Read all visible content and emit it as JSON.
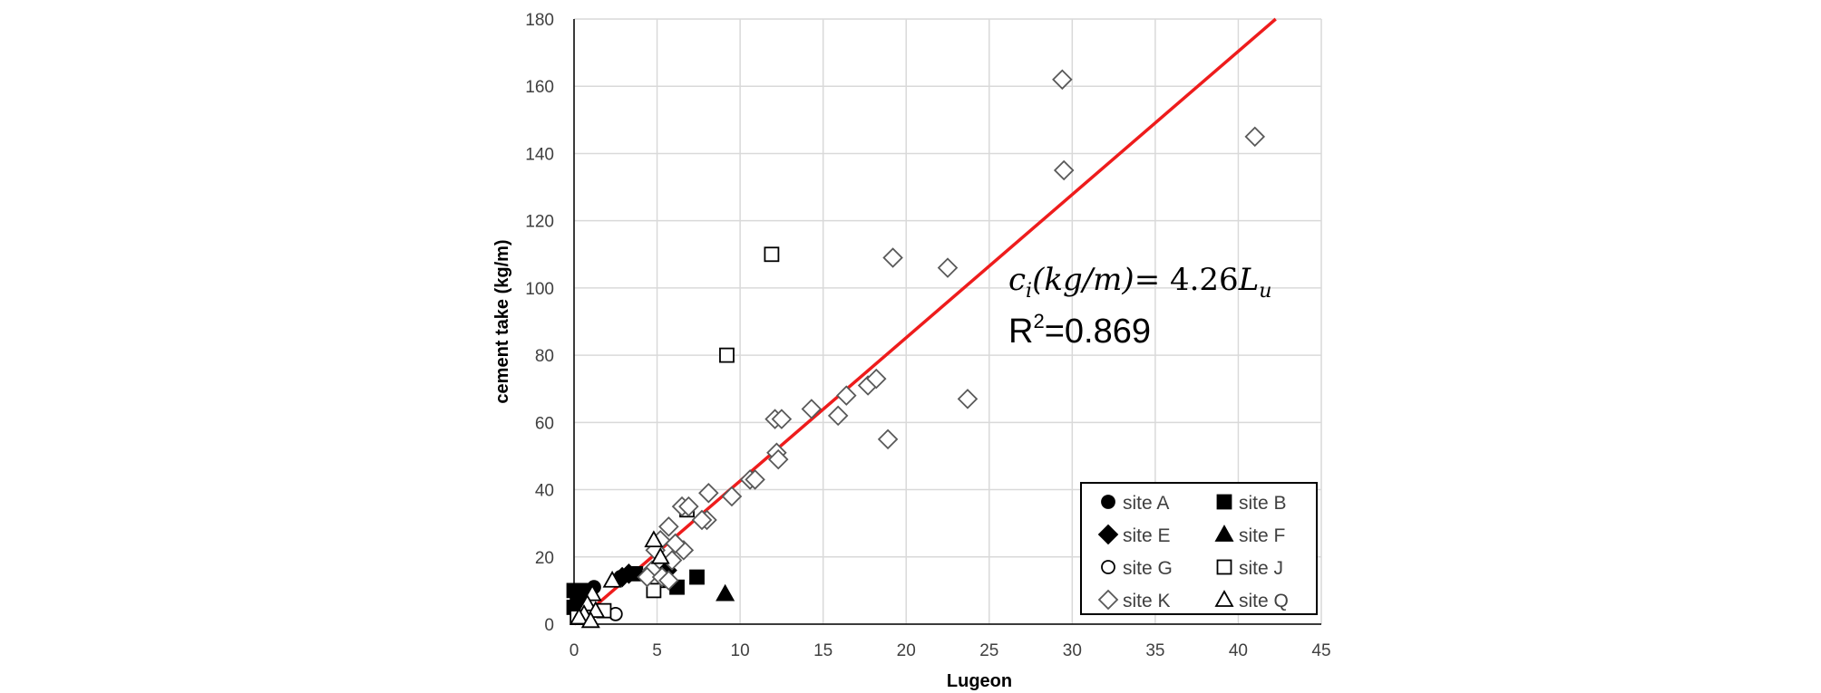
{
  "chart_data": {
    "type": "scatter",
    "xlabel": "Lugeon",
    "ylabel": "cement take (kg/m)",
    "xlim": [
      0,
      45
    ],
    "ylim": [
      0,
      180
    ],
    "xticks": [
      0,
      5,
      10,
      15,
      20,
      25,
      30,
      35,
      40,
      45
    ],
    "yticks": [
      0,
      20,
      40,
      60,
      80,
      100,
      120,
      140,
      160,
      180
    ],
    "grid": true,
    "legend_position": "bottom-right",
    "annotations": {
      "equation": {
        "ci": "c",
        "ci_sub": "i",
        "units": "(kg/m)",
        "eq": "= 4.26",
        "lu": "L",
        "lu_sub": "u"
      },
      "r2": {
        "r": "R",
        "sup": "2",
        "value": "=0.869"
      }
    },
    "trendline": {
      "slope": 4.26,
      "intercept": 0,
      "color": "#ee1c1c",
      "label": "c_i(kg/m)=4.26L_u"
    },
    "series": [
      {
        "name": "site A",
        "marker": "circle",
        "filled": true,
        "points": [
          [
            1.2,
            11
          ],
          [
            2.8,
            14
          ],
          [
            0.4,
            8
          ]
        ]
      },
      {
        "name": "site B",
        "marker": "square",
        "filled": true,
        "points": [
          [
            0,
            10
          ],
          [
            0.2,
            9
          ],
          [
            3.7,
            15
          ],
          [
            5.5,
            13
          ],
          [
            6.2,
            11
          ],
          [
            7.4,
            14
          ],
          [
            0,
            5
          ],
          [
            0.4,
            10
          ]
        ]
      },
      {
        "name": "site E",
        "marker": "diamond",
        "filled": true,
        "points": [
          [
            2.9,
            14
          ],
          [
            3.3,
            15
          ],
          [
            5.6,
            16
          ]
        ]
      },
      {
        "name": "site F",
        "marker": "triangle",
        "filled": true,
        "points": [
          [
            9.1,
            9
          ]
        ]
      },
      {
        "name": "site G",
        "marker": "circle",
        "filled": false,
        "points": [
          [
            2.5,
            3
          ],
          [
            1.5,
            4
          ],
          [
            0.8,
            2
          ]
        ]
      },
      {
        "name": "site J",
        "marker": "square",
        "filled": false,
        "points": [
          [
            11.9,
            110
          ],
          [
            9.2,
            80
          ],
          [
            4.8,
            10
          ],
          [
            6.8,
            34
          ],
          [
            1.8,
            4
          ],
          [
            0.7,
            3
          ],
          [
            0.2,
            2
          ]
        ]
      },
      {
        "name": "site K",
        "marker": "diamond",
        "filled": false,
        "points": [
          [
            29.4,
            162
          ],
          [
            41,
            145
          ],
          [
            29.5,
            135
          ],
          [
            19.2,
            109
          ],
          [
            22.5,
            106
          ],
          [
            23.7,
            67
          ],
          [
            18.9,
            55
          ],
          [
            16.4,
            68
          ],
          [
            15.9,
            62
          ],
          [
            17.7,
            71
          ],
          [
            18.2,
            73
          ],
          [
            14.3,
            64
          ],
          [
            12.1,
            61
          ],
          [
            12.5,
            61
          ],
          [
            12.2,
            51
          ],
          [
            12.3,
            49
          ],
          [
            10.6,
            43
          ],
          [
            10.9,
            43
          ],
          [
            9.5,
            38
          ],
          [
            8.1,
            39
          ],
          [
            8,
            31
          ],
          [
            7.7,
            31
          ],
          [
            6.5,
            35
          ],
          [
            6.9,
            35
          ],
          [
            6.6,
            22
          ],
          [
            6.1,
            24
          ],
          [
            5.7,
            29
          ],
          [
            5.9,
            19
          ],
          [
            5.2,
            25
          ],
          [
            4.9,
            22
          ],
          [
            4.7,
            16
          ],
          [
            4.4,
            14
          ],
          [
            5.3,
            14
          ],
          [
            5.7,
            13
          ]
        ]
      },
      {
        "name": "site Q",
        "marker": "triangle",
        "filled": false,
        "points": [
          [
            4.8,
            25
          ],
          [
            5.2,
            20
          ],
          [
            2.3,
            13
          ],
          [
            1.1,
            9
          ],
          [
            0.8,
            6
          ],
          [
            1.3,
            4
          ],
          [
            0.6,
            3
          ],
          [
            0.3,
            2
          ],
          [
            1,
            1
          ]
        ]
      }
    ]
  }
}
